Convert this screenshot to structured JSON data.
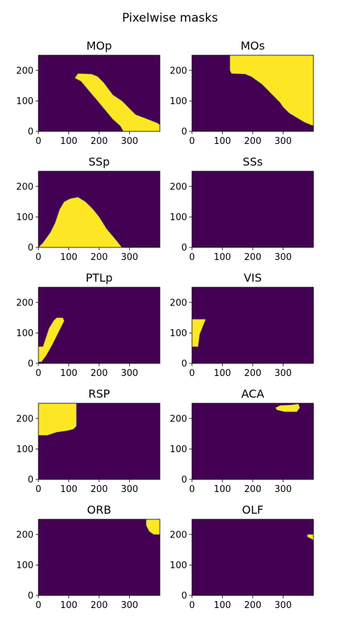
{
  "figure": {
    "suptitle": "Pixelwise masks",
    "colors": {
      "background": "#440154",
      "mask": "#fde725",
      "edge": "#21918c"
    }
  },
  "chart_data": [
    {
      "type": "heatmap",
      "title": "MOp",
      "xlim": [
        0,
        400
      ],
      "ylim": [
        0,
        250
      ],
      "xticks": [
        0,
        100,
        200,
        300
      ],
      "yticks": [
        0,
        100,
        200
      ],
      "mask_outlines": [
        [
          [
            120,
            175
          ],
          [
            130,
            190
          ],
          [
            175,
            188
          ],
          [
            195,
            180
          ],
          [
            215,
            160
          ],
          [
            245,
            120
          ],
          [
            275,
            100
          ],
          [
            300,
            75
          ],
          [
            320,
            55
          ],
          [
            360,
            40
          ],
          [
            390,
            28
          ],
          [
            400,
            22
          ],
          [
            400,
            0
          ],
          [
            280,
            0
          ],
          [
            270,
            18
          ],
          [
            245,
            40
          ],
          [
            220,
            70
          ],
          [
            195,
            100
          ],
          [
            165,
            135
          ],
          [
            140,
            165
          ]
        ]
      ]
    },
    {
      "type": "heatmap",
      "title": "MOs",
      "xlim": [
        0,
        400
      ],
      "ylim": [
        0,
        250
      ],
      "xticks": [
        0,
        100,
        200,
        300
      ],
      "yticks": [
        0,
        100,
        200
      ],
      "mask_outlines": [
        [
          [
            125,
            250
          ],
          [
            400,
            250
          ],
          [
            400,
            20
          ],
          [
            395,
            20
          ],
          [
            370,
            30
          ],
          [
            345,
            45
          ],
          [
            320,
            60
          ],
          [
            300,
            80
          ],
          [
            290,
            95
          ],
          [
            270,
            115
          ],
          [
            250,
            135
          ],
          [
            230,
            155
          ],
          [
            195,
            180
          ],
          [
            175,
            188
          ],
          [
            130,
            190
          ],
          [
            125,
            200
          ],
          [
            125,
            230
          ]
        ]
      ]
    },
    {
      "type": "heatmap",
      "title": "SSp",
      "xlim": [
        0,
        400
      ],
      "ylim": [
        0,
        250
      ],
      "xticks": [
        0,
        100,
        200,
        300
      ],
      "yticks": [
        0,
        100,
        200
      ],
      "mask_outlines": [
        [
          [
            0,
            0
          ],
          [
            275,
            0
          ],
          [
            255,
            25
          ],
          [
            225,
            60
          ],
          [
            200,
            100
          ],
          [
            180,
            125
          ],
          [
            155,
            150
          ],
          [
            130,
            165
          ],
          [
            105,
            160
          ],
          [
            85,
            150
          ],
          [
            70,
            125
          ],
          [
            55,
            80
          ],
          [
            40,
            50
          ],
          [
            15,
            15
          ]
        ]
      ]
    },
    {
      "type": "heatmap",
      "title": "SSs",
      "xlim": [
        0,
        400
      ],
      "ylim": [
        0,
        250
      ],
      "xticks": [
        0,
        100,
        200,
        300
      ],
      "yticks": [
        0,
        100,
        200
      ],
      "mask_outlines": []
    },
    {
      "type": "heatmap",
      "title": "PTLp",
      "xlim": [
        0,
        400
      ],
      "ylim": [
        0,
        250
      ],
      "xticks": [
        0,
        100,
        200,
        300
      ],
      "yticks": [
        0,
        100,
        200
      ],
      "mask_outlines": [
        [
          [
            0,
            5
          ],
          [
            0,
            55
          ],
          [
            15,
            55
          ],
          [
            25,
            85
          ],
          [
            35,
            115
          ],
          [
            50,
            140
          ],
          [
            60,
            150
          ],
          [
            80,
            150
          ],
          [
            85,
            140
          ],
          [
            75,
            120
          ],
          [
            60,
            90
          ],
          [
            45,
            60
          ],
          [
            25,
            25
          ],
          [
            10,
            5
          ]
        ]
      ]
    },
    {
      "type": "heatmap",
      "title": "VIS",
      "xlim": [
        0,
        400
      ],
      "ylim": [
        0,
        250
      ],
      "xticks": [
        0,
        100,
        200,
        300
      ],
      "yticks": [
        0,
        100,
        200
      ],
      "mask_outlines": [
        [
          [
            0,
            145
          ],
          [
            45,
            145
          ],
          [
            35,
            120
          ],
          [
            25,
            95
          ],
          [
            20,
            55
          ],
          [
            0,
            55
          ]
        ]
      ]
    },
    {
      "type": "heatmap",
      "title": "RSP",
      "xlim": [
        0,
        400
      ],
      "ylim": [
        0,
        250
      ],
      "xticks": [
        0,
        100,
        200,
        300
      ],
      "yticks": [
        0,
        100,
        200
      ],
      "mask_outlines": [
        [
          [
            0,
            250
          ],
          [
            125,
            250
          ],
          [
            125,
            175
          ],
          [
            115,
            165
          ],
          [
            95,
            160
          ],
          [
            60,
            155
          ],
          [
            30,
            145
          ],
          [
            0,
            145
          ]
        ]
      ]
    },
    {
      "type": "heatmap",
      "title": "ACA",
      "xlim": [
        0,
        400
      ],
      "ylim": [
        0,
        250
      ],
      "xticks": [
        0,
        100,
        200,
        300
      ],
      "yticks": [
        0,
        100,
        200
      ],
      "mask_outlines": [
        [
          [
            275,
            235
          ],
          [
            290,
            243
          ],
          [
            330,
            245
          ],
          [
            350,
            248
          ],
          [
            355,
            235
          ],
          [
            345,
            222
          ],
          [
            305,
            222
          ],
          [
            280,
            228
          ]
        ]
      ]
    },
    {
      "type": "heatmap",
      "title": "ORB",
      "xlim": [
        0,
        400
      ],
      "ylim": [
        0,
        250
      ],
      "xticks": [
        0,
        100,
        200,
        300
      ],
      "yticks": [
        0,
        100,
        200
      ],
      "mask_outlines": [
        [
          [
            355,
            250
          ],
          [
            400,
            250
          ],
          [
            400,
            200
          ],
          [
            380,
            200
          ],
          [
            365,
            210
          ],
          [
            355,
            230
          ]
        ]
      ]
    },
    {
      "type": "heatmap",
      "title": "OLF",
      "xlim": [
        0,
        400
      ],
      "ylim": [
        0,
        250
      ],
      "xticks": [
        0,
        100,
        200,
        300
      ],
      "yticks": [
        0,
        100,
        200
      ],
      "mask_outlines": [
        [
          [
            380,
            200
          ],
          [
            400,
            200
          ],
          [
            400,
            180
          ],
          [
            395,
            185
          ],
          [
            380,
            192
          ]
        ]
      ]
    }
  ]
}
